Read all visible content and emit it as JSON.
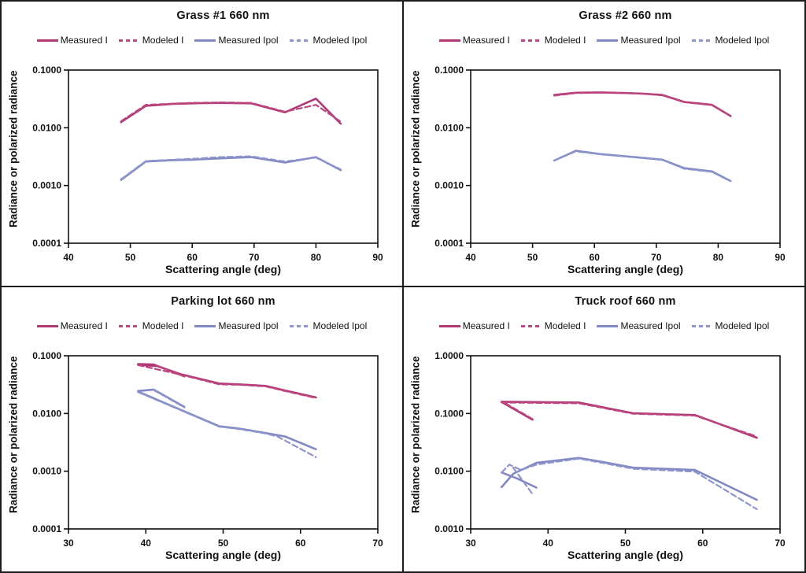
{
  "page": {
    "background": "#ffffff",
    "border_color": "#1c1c1c"
  },
  "colors": {
    "measured_i": "#b03a73",
    "modeled_i": "#bd4681",
    "measured_ipol": "#8188c3",
    "modeled_ipol": "#8d95cc"
  },
  "legend": {
    "items": [
      {
        "label": "Measured I",
        "color": "measured_i",
        "dash": false
      },
      {
        "label": "Modeled I",
        "color": "modeled_i",
        "dash": true
      },
      {
        "label": "Measured Ipol",
        "color": "measured_ipol",
        "dash": false
      },
      {
        "label": "Modeled Ipol",
        "color": "modeled_ipol",
        "dash": true
      }
    ]
  },
  "chart_data": [
    {
      "type": "line",
      "title": "Grass #1 660 nm",
      "xlabel": "Scattering angle (deg)",
      "ylabel": "Radiance or polarized radiance",
      "x_axis": {
        "min": 40,
        "max": 90,
        "ticks": [
          40,
          50,
          60,
          70,
          80,
          90
        ]
      },
      "y_axis": {
        "scale": "log",
        "min": 0.0001,
        "max": 0.1,
        "tick_labels": [
          "0.1000",
          "0.0100",
          "0.0010",
          "0.0001"
        ]
      },
      "series": [
        {
          "name": "Measured I",
          "color": "measured_i",
          "dash": false,
          "segments": [
            [
              [
                48.5,
                0.0125
              ],
              [
                52.5,
                0.024
              ],
              [
                57,
                0.026
              ],
              [
                60,
                0.0265
              ],
              [
                64.5,
                0.027
              ],
              [
                69.5,
                0.0265
              ],
              [
                75,
                0.0185
              ],
              [
                80,
                0.032
              ],
              [
                84,
                0.0118
              ]
            ]
          ]
        },
        {
          "name": "Modeled I",
          "color": "modeled_i",
          "dash": true,
          "segments": [
            [
              [
                48.5,
                0.013
              ],
              [
                52.5,
                0.025
              ],
              [
                57,
                0.0262
              ],
              [
                60,
                0.027
              ],
              [
                64.5,
                0.0275
              ],
              [
                69.5,
                0.027
              ],
              [
                75,
                0.019
              ],
              [
                80,
                0.025
              ],
              [
                84,
                0.0128
              ]
            ]
          ]
        },
        {
          "name": "Measured Ipol",
          "color": "measured_ipol",
          "dash": false,
          "segments": [
            [
              [
                48.5,
                0.00125
              ],
              [
                52.5,
                0.0026
              ],
              [
                57,
                0.00275
              ],
              [
                60,
                0.0028
              ],
              [
                64.5,
                0.00295
              ],
              [
                69.5,
                0.0031
              ],
              [
                75,
                0.0025
              ],
              [
                80,
                0.0031
              ],
              [
                84,
                0.00185
              ]
            ]
          ]
        },
        {
          "name": "Modeled Ipol",
          "color": "modeled_ipol",
          "dash": true,
          "segments": [
            [
              [
                48.5,
                0.00128
              ],
              [
                52.5,
                0.00265
              ],
              [
                57,
                0.0028
              ],
              [
                60,
                0.0029
              ],
              [
                64.5,
                0.0031
              ],
              [
                69.5,
                0.0032
              ],
              [
                75,
                0.0026
              ],
              [
                80,
                0.00305
              ],
              [
                84,
                0.0019
              ]
            ]
          ]
        }
      ]
    },
    {
      "type": "line",
      "title": "Grass #2 660 nm",
      "xlabel": "Scattering angle (deg)",
      "ylabel": "Radiance or polarized radiance",
      "x_axis": {
        "min": 40,
        "max": 90,
        "ticks": [
          40,
          50,
          60,
          70,
          80,
          90
        ]
      },
      "y_axis": {
        "scale": "log",
        "min": 0.0001,
        "max": 0.1,
        "tick_labels": [
          "0.1000",
          "0.0100",
          "0.0010",
          "0.0001"
        ]
      },
      "series": [
        {
          "name": "Measured I",
          "color": "measured_i",
          "dash": false,
          "segments": [
            [
              [
                53.5,
                0.037
              ],
              [
                57,
                0.0405
              ],
              [
                61,
                0.041
              ],
              [
                65,
                0.04
              ],
              [
                68,
                0.039
              ],
              [
                71,
                0.037
              ],
              [
                74.5,
                0.028
              ],
              [
                79,
                0.025
              ],
              [
                82,
                0.016
              ]
            ]
          ]
        },
        {
          "name": "Modeled I",
          "color": "modeled_i",
          "dash": true,
          "segments": [
            [
              [
                53.5,
                0.036
              ],
              [
                57,
                0.04
              ],
              [
                61,
                0.0405
              ],
              [
                65,
                0.0398
              ],
              [
                68,
                0.0388
              ],
              [
                71,
                0.0365
              ],
              [
                74.5,
                0.0278
              ],
              [
                79,
                0.0247
              ],
              [
                82,
                0.016
              ]
            ]
          ]
        },
        {
          "name": "Measured Ipol",
          "color": "measured_ipol",
          "dash": false,
          "segments": [
            [
              [
                53.5,
                0.0027
              ],
              [
                57,
                0.004
              ],
              [
                61,
                0.0035
              ],
              [
                65,
                0.0032
              ],
              [
                68,
                0.003
              ],
              [
                71,
                0.0028
              ],
              [
                74.5,
                0.002
              ],
              [
                79,
                0.00175
              ],
              [
                82,
                0.0012
              ]
            ]
          ]
        },
        {
          "name": "Modeled Ipol",
          "color": "modeled_ipol",
          "dash": true,
          "segments": [
            [
              [
                53.5,
                0.0027
              ],
              [
                57,
                0.0039
              ],
              [
                61,
                0.00348
              ],
              [
                65,
                0.00318
              ],
              [
                68,
                0.00298
              ],
              [
                71,
                0.00278
              ],
              [
                74.5,
                0.00195
              ],
              [
                79,
                0.00172
              ],
              [
                82,
                0.00119
              ]
            ]
          ]
        }
      ]
    },
    {
      "type": "line",
      "title": "Parking lot 660 nm",
      "xlabel": "Scattering angle (deg)",
      "ylabel": "Radiance or polarized radiance",
      "x_axis": {
        "min": 30,
        "max": 70,
        "ticks": [
          30,
          40,
          50,
          60,
          70
        ]
      },
      "y_axis": {
        "scale": "log",
        "min": 0.0001,
        "max": 0.1,
        "tick_labels": [
          "0.1000",
          "0.0100",
          "0.0010",
          "0.0001"
        ]
      },
      "series": [
        {
          "name": "Measured I",
          "color": "measured_i",
          "dash": false,
          "segments": [
            [
              [
                39,
                0.07
              ],
              [
                41.5,
                0.066
              ],
              [
                44.5,
                0.048
              ],
              [
                49.5,
                0.033
              ],
              [
                52,
                0.032
              ],
              [
                55.5,
                0.03
              ],
              [
                58,
                0.025
              ],
              [
                62,
                0.019
              ]
            ],
            [
              [
                39,
                0.072
              ],
              [
                41,
                0.0705
              ],
              [
                45,
                0.044
              ]
            ]
          ]
        },
        {
          "name": "Modeled I",
          "color": "modeled_i",
          "dash": true,
          "segments": [
            [
              [
                39,
                0.069
              ],
              [
                44.5,
                0.047
              ],
              [
                49.5,
                0.032
              ],
              [
                52,
                0.0315
              ],
              [
                55.5,
                0.0295
              ],
              [
                58,
                0.0245
              ],
              [
                62,
                0.0185
              ]
            ],
            [
              [
                41.5,
                0.067
              ],
              [
                45,
                0.0435
              ]
            ]
          ]
        },
        {
          "name": "Measured Ipol",
          "color": "measured_ipol",
          "dash": false,
          "segments": [
            [
              [
                39,
                0.024
              ],
              [
                49.5,
                0.006
              ],
              [
                52,
                0.0055
              ],
              [
                55.5,
                0.0046
              ],
              [
                58,
                0.004
              ],
              [
                62,
                0.0024
              ]
            ],
            [
              [
                39,
                0.0245
              ],
              [
                41,
                0.026
              ],
              [
                45,
                0.013
              ]
            ]
          ]
        },
        {
          "name": "Modeled Ipol",
          "color": "modeled_ipol",
          "dash": true,
          "segments": [
            [
              [
                39,
                0.0235
              ],
              [
                49.5,
                0.0059
              ],
              [
                52,
                0.0054
              ],
              [
                55.5,
                0.0045
              ],
              [
                57,
                0.004
              ],
              [
                62,
                0.00175
              ]
            ],
            [
              [
                41,
                0.0255
              ],
              [
                45,
                0.0127
              ]
            ]
          ]
        }
      ]
    },
    {
      "type": "line",
      "title": "Truck roof 660 nm",
      "xlabel": "Scattering angle (deg)",
      "ylabel": "Radiance or polarized radiance",
      "x_axis": {
        "min": 30,
        "max": 70,
        "ticks": [
          30,
          40,
          50,
          60,
          70
        ]
      },
      "y_axis": {
        "scale": "log",
        "min": 0.001,
        "max": 1.0,
        "tick_labels": [
          "1.0000",
          "0.1000",
          "0.0100",
          "0.0010"
        ]
      },
      "series": [
        {
          "name": "Measured I",
          "color": "measured_i",
          "dash": false,
          "segments": [
            [
              [
                34,
                0.16
              ],
              [
                44,
                0.155
              ],
              [
                51,
                0.101
              ],
              [
                59,
                0.094
              ],
              [
                67,
                0.038
              ]
            ],
            [
              [
                34,
                0.158
              ],
              [
                38,
                0.078
              ]
            ]
          ]
        },
        {
          "name": "Modeled I",
          "color": "modeled_i",
          "dash": true,
          "segments": [
            [
              [
                34,
                0.155
              ],
              [
                44,
                0.15
              ],
              [
                51,
                0.099
              ],
              [
                59,
                0.092
              ],
              [
                67,
                0.04
              ]
            ],
            [
              [
                34.5,
                0.15
              ],
              [
                38,
                0.08
              ]
            ]
          ]
        },
        {
          "name": "Measured Ipol",
          "color": "measured_ipol",
          "dash": false,
          "segments": [
            [
              [
                34,
                0.0053
              ],
              [
                35.5,
                0.009
              ],
              [
                38.5,
                0.014
              ],
              [
                44,
                0.017
              ],
              [
                47,
                0.0145
              ],
              [
                51,
                0.0115
              ],
              [
                59,
                0.0105
              ],
              [
                67,
                0.0032
              ]
            ],
            [
              [
                34,
                0.0095
              ],
              [
                36,
                0.0075
              ],
              [
                38.5,
                0.0052
              ]
            ]
          ]
        },
        {
          "name": "Modeled Ipol",
          "color": "modeled_ipol",
          "dash": true,
          "segments": [
            [
              [
                34,
                0.0095
              ],
              [
                35,
                0.013
              ],
              [
                36.5,
                0.0105
              ],
              [
                38.5,
                0.013
              ],
              [
                44,
                0.0165
              ],
              [
                47,
                0.014
              ],
              [
                51,
                0.011
              ],
              [
                59,
                0.0098
              ],
              [
                67,
                0.0022
              ]
            ],
            [
              [
                35.5,
                0.0115
              ],
              [
                38,
                0.004
              ]
            ]
          ]
        }
      ]
    }
  ]
}
